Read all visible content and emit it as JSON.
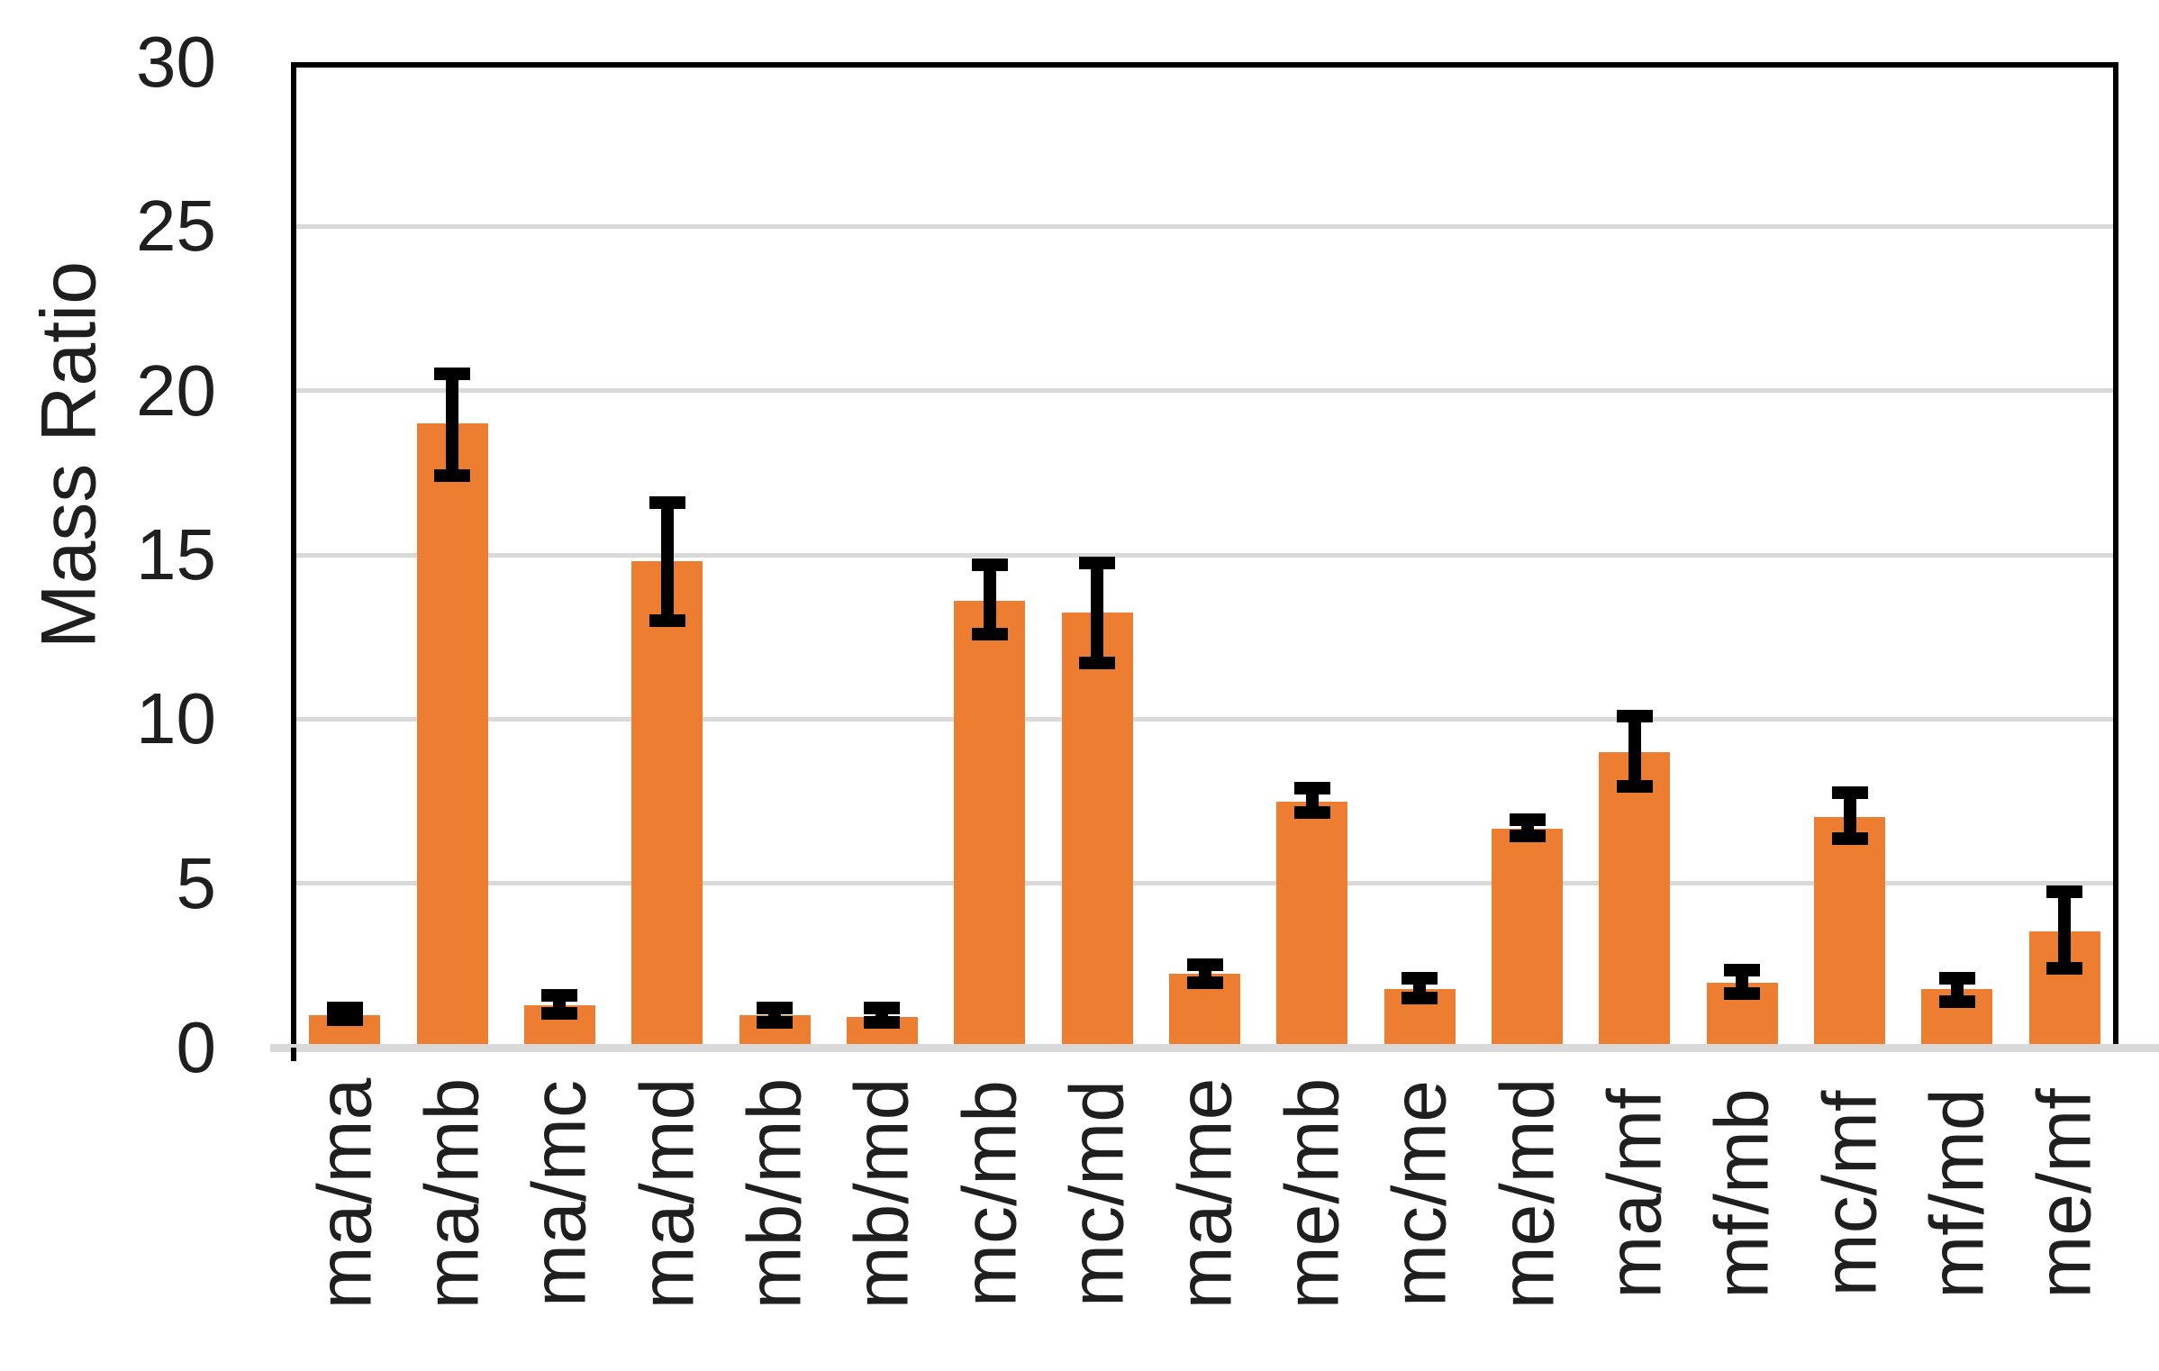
{
  "chart_data": {
    "type": "bar",
    "title": "",
    "xlabel": "",
    "ylabel": "Mass Ratio",
    "categories": [
      "ma/ma",
      "ma/mb",
      "ma/mc",
      "ma/md",
      "mb/mb",
      "mb/md",
      "mc/mb",
      "mc/md",
      "ma/me",
      "me/mb",
      "mc/me",
      "me/md",
      "ma/mf",
      "mf/mb",
      "mc/mf",
      "mf/md",
      "me/mf"
    ],
    "values": [
      1.0,
      19.0,
      1.3,
      14.8,
      1.0,
      0.93,
      13.6,
      13.25,
      2.25,
      7.5,
      1.78,
      6.67,
      9.0,
      1.97,
      7.03,
      1.77,
      3.55
    ],
    "error_low": [
      0.85,
      17.4,
      1.05,
      13.0,
      0.78,
      0.77,
      12.6,
      11.7,
      1.97,
      7.15,
      1.5,
      6.45,
      7.95,
      1.64,
      6.35,
      1.4,
      2.4
    ],
    "error_high": [
      1.2,
      20.5,
      1.6,
      16.6,
      1.22,
      1.2,
      14.7,
      14.75,
      2.53,
      7.9,
      2.1,
      6.95,
      10.1,
      2.37,
      7.75,
      2.1,
      4.75
    ],
    "ylim": [
      0,
      30
    ],
    "yticks": [
      0,
      5,
      10,
      15,
      20,
      25,
      30
    ],
    "grid": true,
    "legend": false,
    "bar_color": "#ED7D31",
    "error_color": "#000000",
    "gridline_color": "#D9D9D9",
    "axis_color": "#000000",
    "text_color": "#1F1F1F"
  }
}
